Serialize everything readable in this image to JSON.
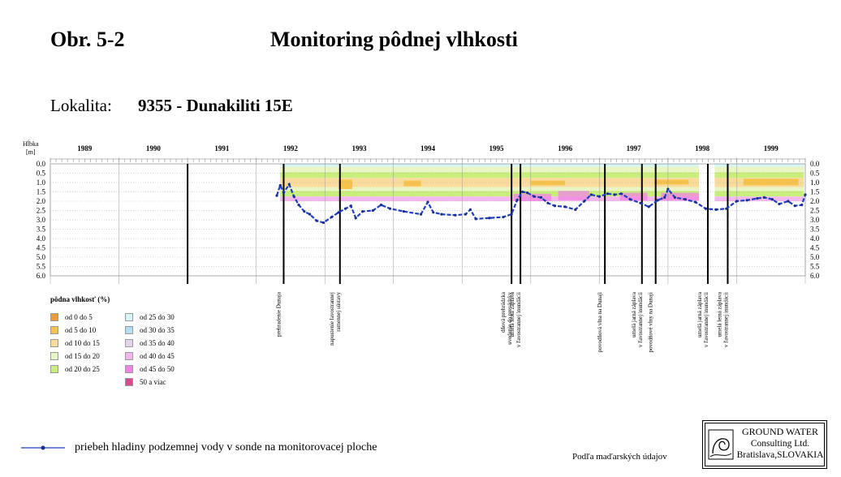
{
  "header": {
    "figure_number": "Obr. 5-2",
    "title": "Monitoring pôdnej vlhkosti",
    "locality_label": "Lokalita:",
    "locality_value": "9355 - Dunakiliti 15E"
  },
  "chart_data": {
    "type": "heatmap",
    "y_axis_title_line1": "Hĺbka",
    "y_axis_title_line2": "[m]",
    "y_ticks": [
      "0.0",
      "0.5",
      "1.0",
      "1.5",
      "2.0",
      "2.5",
      "3.0",
      "3.5",
      "4.0",
      "4.5",
      "5.0",
      "5.5",
      "6.0"
    ],
    "ylim": [
      6.0,
      0.0
    ],
    "years": [
      "1989",
      "1990",
      "1991",
      "1992",
      "1993",
      "1994",
      "1995",
      "1996",
      "1997",
      "1998",
      "1999"
    ],
    "x_range": [
      1989.0,
      2000.0
    ],
    "data_coverage": [
      [
        1992.35,
        1998.45
      ],
      [
        1998.68,
        1999.98
      ]
    ],
    "groundwater_depth": [
      [
        1992.3,
        1.7
      ],
      [
        1992.35,
        1.15
      ],
      [
        1992.4,
        1.55
      ],
      [
        1992.48,
        1.1
      ],
      [
        1992.55,
        1.75
      ],
      [
        1992.62,
        2.2
      ],
      [
        1992.7,
        2.55
      ],
      [
        1992.78,
        2.7
      ],
      [
        1992.88,
        3.05
      ],
      [
        1992.98,
        3.15
      ],
      [
        1993.1,
        2.85
      ],
      [
        1993.2,
        2.6
      ],
      [
        1993.3,
        2.4
      ],
      [
        1993.38,
        2.25
      ],
      [
        1993.45,
        2.9
      ],
      [
        1993.55,
        2.55
      ],
      [
        1993.7,
        2.5
      ],
      [
        1993.82,
        2.2
      ],
      [
        1993.95,
        2.4
      ],
      [
        1994.15,
        2.55
      ],
      [
        1994.4,
        2.7
      ],
      [
        1994.5,
        2.05
      ],
      [
        1994.58,
        2.6
      ],
      [
        1994.7,
        2.7
      ],
      [
        1994.9,
        2.75
      ],
      [
        1995.05,
        2.7
      ],
      [
        1995.12,
        2.45
      ],
      [
        1995.2,
        2.95
      ],
      [
        1995.4,
        2.9
      ],
      [
        1995.6,
        2.85
      ],
      [
        1995.72,
        2.7
      ],
      [
        1995.8,
        1.95
      ],
      [
        1995.88,
        1.5
      ],
      [
        1995.95,
        1.55
      ],
      [
        1996.05,
        1.75
      ],
      [
        1996.15,
        1.8
      ],
      [
        1996.25,
        2.1
      ],
      [
        1996.35,
        2.25
      ],
      [
        1996.5,
        2.3
      ],
      [
        1996.65,
        2.45
      ],
      [
        1996.78,
        2.0
      ],
      [
        1996.88,
        1.65
      ],
      [
        1997.0,
        1.75
      ],
      [
        1997.12,
        1.6
      ],
      [
        1997.22,
        1.65
      ],
      [
        1997.32,
        1.6
      ],
      [
        1997.45,
        1.9
      ],
      [
        1997.6,
        2.1
      ],
      [
        1997.72,
        2.3
      ],
      [
        1997.85,
        1.95
      ],
      [
        1997.95,
        1.8
      ],
      [
        1998.0,
        1.35
      ],
      [
        1998.1,
        1.8
      ],
      [
        1998.25,
        1.9
      ],
      [
        1998.4,
        2.05
      ],
      [
        1998.55,
        2.4
      ],
      [
        1998.7,
        2.45
      ],
      [
        1998.85,
        2.4
      ],
      [
        1999.0,
        2.0
      ],
      [
        1999.15,
        1.95
      ],
      [
        1999.3,
        1.85
      ],
      [
        1999.4,
        1.8
      ],
      [
        1999.52,
        1.9
      ],
      [
        1999.62,
        2.15
      ],
      [
        1999.75,
        2.0
      ],
      [
        1999.85,
        2.25
      ],
      [
        1999.95,
        2.2
      ],
      [
        2000.0,
        1.65
      ]
    ],
    "events": [
      {
        "x": 1992.4,
        "label": "prehradenie Dunaja"
      },
      {
        "x": 1993.22,
        "label": "napustenie lavostrannej\nramennej sústavy"
      },
      {
        "x": 1995.72,
        "label": "dňová prehrádzka\nuvedenie do prevádzky"
      },
      {
        "x": 1995.85,
        "label": "umelá letná záplava\nv ľavostrannej inundácii"
      },
      {
        "x": 1997.08,
        "label": "povodňová vlna na Dunaji"
      },
      {
        "x": 1997.62,
        "label": "umelá jarná záplava\nv ľavostrannej inundácii"
      },
      {
        "x": 1997.82,
        "label": "povodňové vlny na Dunaji"
      },
      {
        "x": 1998.58,
        "label": "umelá jarná záplava\nv ľavostrannej inundácii"
      },
      {
        "x": 1998.87,
        "label": "umelá letná záplava\nv ľavostrannej inundácii"
      },
      {
        "x": 1991.0,
        "label": ""
      }
    ]
  },
  "legend": {
    "title": "pôdna vlhkosť (%)",
    "items": [
      {
        "label": "od 0 do 5",
        "color": "#f29b3a"
      },
      {
        "label": "od 5 do 10",
        "color": "#f7c24a"
      },
      {
        "label": "od 10 do 15",
        "color": "#f9dc9b"
      },
      {
        "label": "od 15 do 20",
        "color": "#e9f5c4"
      },
      {
        "label": "od 20 do 25",
        "color": "#c8ef7c"
      },
      {
        "label": "od 25 do 30",
        "color": "#d6f7f5"
      },
      {
        "label": "od 30 do 35",
        "color": "#b5def2"
      },
      {
        "label": "od 35 do 40",
        "color": "#e4d4ee"
      },
      {
        "label": "od 40 do 45",
        "color": "#f3b9ef"
      },
      {
        "label": "od 45 do 50",
        "color": "#f283e3"
      },
      {
        "label": "50 a viac",
        "color": "#e0468c"
      }
    ]
  },
  "footer": {
    "groundwater_legend": "priebeh hladiny podzemnej vody v sonde na monitorovacej ploche",
    "source_note": "Podľa maďarských údajov",
    "logo_line1": "GROUND WATER",
    "logo_line2": "Consulting Ltd.",
    "logo_line3": "Bratislava,SLOVAKIA"
  },
  "colors": {
    "groundwater_line": "#1f3fbf",
    "groundwater_marker": "#1a2e8f",
    "groundwater_highlight": "#4ac3c0",
    "event_line": "#000000",
    "grid": "#aaaaaa"
  }
}
